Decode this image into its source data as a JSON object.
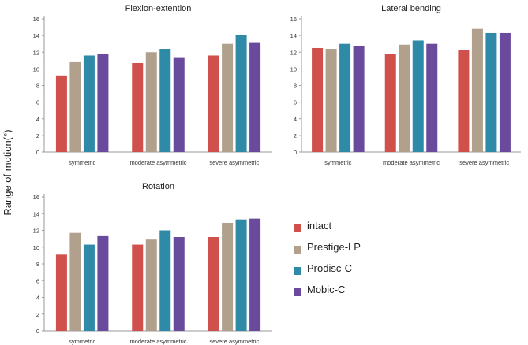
{
  "figure": {
    "ylabel": "Range of motion(°)"
  },
  "legend": [
    {
      "label": "intact",
      "color": "#d0504b"
    },
    {
      "label": "Prestige-LP",
      "color": "#b0a08c"
    },
    {
      "label": "Prodisc-C",
      "color": "#2f8aa8"
    },
    {
      "label": "Mobic-C",
      "color": "#6a4a9c"
    }
  ],
  "chart_data": [
    {
      "type": "bar",
      "title": "Flexion-extention",
      "categories": [
        "symmetric",
        "moderate asymmetric",
        "severe asymmetric"
      ],
      "series": [
        {
          "name": "intact",
          "values": [
            9.2,
            10.7,
            11.6
          ]
        },
        {
          "name": "Prestige-LP",
          "values": [
            10.8,
            12.0,
            13.0
          ]
        },
        {
          "name": "Prodisc-C",
          "values": [
            11.6,
            12.4,
            14.1
          ]
        },
        {
          "name": "Mobic-C",
          "values": [
            11.8,
            11.4,
            13.2
          ]
        }
      ],
      "yticks": [
        "0",
        "2",
        "4",
        "6",
        "8",
        "10",
        "12",
        "14",
        "16"
      ],
      "ylim": [
        0,
        16
      ],
      "xlabel": "",
      "ylabel": ""
    },
    {
      "type": "bar",
      "title": "Lateral bending",
      "categories": [
        "symmetric",
        "moderate asymmetric",
        "severe asymmetric"
      ],
      "series": [
        {
          "name": "intact",
          "values": [
            12.5,
            11.8,
            12.3
          ]
        },
        {
          "name": "Prestige-LP",
          "values": [
            12.4,
            12.9,
            14.8
          ]
        },
        {
          "name": "Prodisc-C",
          "values": [
            13.0,
            13.4,
            14.3
          ]
        },
        {
          "name": "Mobic-C",
          "values": [
            12.7,
            13.0,
            14.3
          ]
        }
      ],
      "yticks": [
        "0",
        "2",
        "4",
        "6",
        "8",
        "10",
        "12",
        "14",
        "16"
      ],
      "ylim": [
        0,
        16
      ],
      "xlabel": "",
      "ylabel": ""
    },
    {
      "type": "bar",
      "title": "Rotation",
      "categories": [
        "symmetric",
        "moderate asymmetric",
        "severe asymmetric"
      ],
      "series": [
        {
          "name": "intact",
          "values": [
            9.1,
            10.3,
            11.2
          ]
        },
        {
          "name": "Prestige-LP",
          "values": [
            11.7,
            10.9,
            12.9
          ]
        },
        {
          "name": "Prodisc-C",
          "values": [
            10.3,
            12.0,
            13.3
          ]
        },
        {
          "name": "Mobic-C",
          "values": [
            11.4,
            11.2,
            13.4
          ]
        }
      ],
      "yticks": [
        "0",
        "2",
        "4",
        "6",
        "8",
        "10",
        "12",
        "14",
        "16"
      ],
      "ylim": [
        0,
        16
      ],
      "xlabel": "",
      "ylabel": ""
    }
  ]
}
